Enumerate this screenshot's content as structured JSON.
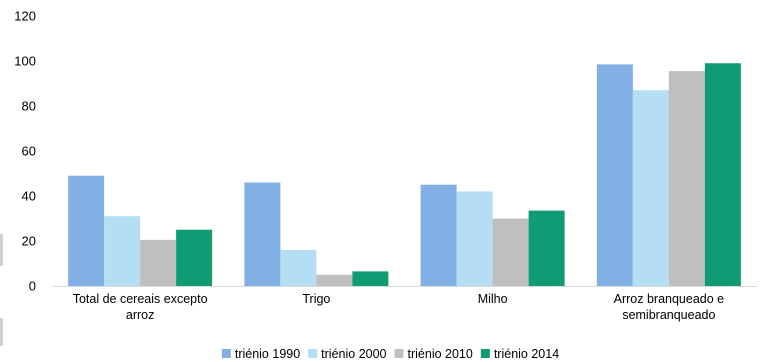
{
  "chart_data": {
    "type": "bar",
    "categories": [
      [
        "Total de cereais excepto",
        "arroz"
      ],
      [
        "Trigo"
      ],
      [
        "Milho"
      ],
      [
        "Arroz branqueado e",
        "semibranqueado"
      ]
    ],
    "series": [
      {
        "name": "triénio 1990",
        "color": "#82b0e4",
        "values": [
          49,
          46,
          45,
          98.5
        ]
      },
      {
        "name": "triénio 2000",
        "color": "#b3def4",
        "values": [
          31,
          16,
          42,
          87
        ]
      },
      {
        "name": "triénio 2010",
        "color": "#bfbfbf",
        "values": [
          20.5,
          5,
          30,
          95.5
        ]
      },
      {
        "name": "triénio 2014",
        "color": "#0f9b73",
        "values": [
          25,
          6.5,
          33.5,
          99
        ]
      }
    ],
    "ylim": [
      0,
      120
    ],
    "yticks": [
      0,
      20,
      40,
      60,
      80,
      100,
      120
    ],
    "grid": false,
    "legend_position": "bottom-center",
    "title": "",
    "xlabel": "",
    "ylabel": ""
  }
}
